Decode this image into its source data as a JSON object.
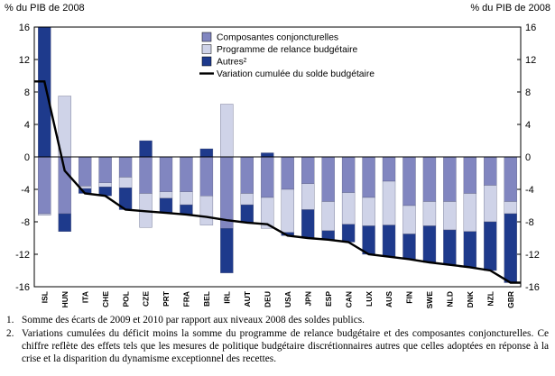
{
  "chart_data": {
    "type": "bar",
    "stacked": true,
    "y_axis_caption": "% du PIB de 2008",
    "ylim": [
      -16,
      16
    ],
    "yticks": [
      16,
      12,
      8,
      4,
      0,
      -4,
      -8,
      -12,
      -16
    ],
    "grid": false,
    "legend_position": "top-center",
    "categories": [
      "ISL",
      "HUN",
      "ITA",
      "CHE",
      "POL",
      "CZE",
      "PRT",
      "FRA",
      "BEL",
      "IRL",
      "AUT",
      "DEU",
      "USA",
      "JPN",
      "ESP",
      "CAN",
      "LUX",
      "AUS",
      "FIN",
      "SWE",
      "NLD",
      "DNK",
      "NZL",
      "GBR"
    ],
    "series": [
      {
        "name": "Composantes conjoncturelles",
        "color": "#8186c0",
        "values": [
          -7.0,
          -7.0,
          -3.6,
          -3.2,
          -2.5,
          -4.5,
          -4.3,
          -4.3,
          -4.8,
          -8.8,
          -4.5,
          -5.0,
          -4.0,
          -3.3,
          -5.5,
          -4.4,
          -5.0,
          -3.0,
          -6.0,
          -5.5,
          -5.5,
          -4.5,
          -3.5,
          -5.5
        ]
      },
      {
        "name": "Programme de relance budgétaire",
        "color": "#cfd3e8",
        "values": [
          -0.2,
          7.5,
          -0.3,
          -0.5,
          -1.3,
          -4.2,
          -0.8,
          -1.6,
          -3.6,
          6.5,
          -1.4,
          -3.8,
          -5.3,
          -3.2,
          -3.6,
          -3.9,
          -3.5,
          -5.4,
          -3.5,
          -3.0,
          -3.5,
          -4.7,
          -4.5,
          -1.5
        ]
      },
      {
        "name": "Autres²",
        "color": "#1e3a8c",
        "values": [
          16.5,
          -2.2,
          -0.6,
          -1.1,
          -2.7,
          2.0,
          -1.8,
          -1.2,
          1.0,
          -5.5,
          -2.2,
          0.5,
          -0.4,
          -3.5,
          -1.1,
          -2.2,
          -3.5,
          -3.9,
          -3.1,
          -4.5,
          -4.3,
          -4.4,
          -6.0,
          -8.5
        ]
      }
    ],
    "line": {
      "name": "Variation cumulée du solde budgétaire",
      "color": "#000000",
      "values": [
        9.3,
        -1.7,
        -4.5,
        -4.8,
        -6.5,
        -6.7,
        -6.9,
        -7.1,
        -7.4,
        -7.8,
        -8.1,
        -8.3,
        -9.7,
        -10.0,
        -10.2,
        -10.5,
        -12.0,
        -12.3,
        -12.6,
        -13.0,
        -13.3,
        -13.6,
        -14.0,
        -15.5
      ]
    }
  },
  "footnotes": [
    {
      "num": "1.",
      "text": "Somme des écarts de 2009 et 2010 par rapport aux niveaux 2008 des soldes publics."
    },
    {
      "num": "2.",
      "text": "Variations cumulées du déficit moins la somme du programme de relance budgétaire et des composantes conjoncturelles. Ce chiffre reflète des effets tels que les mesures de politique budgétaire discrétionnaires autres que celles adoptées en réponse à la crise et la disparition du dynamisme exceptionnel des recettes."
    }
  ]
}
